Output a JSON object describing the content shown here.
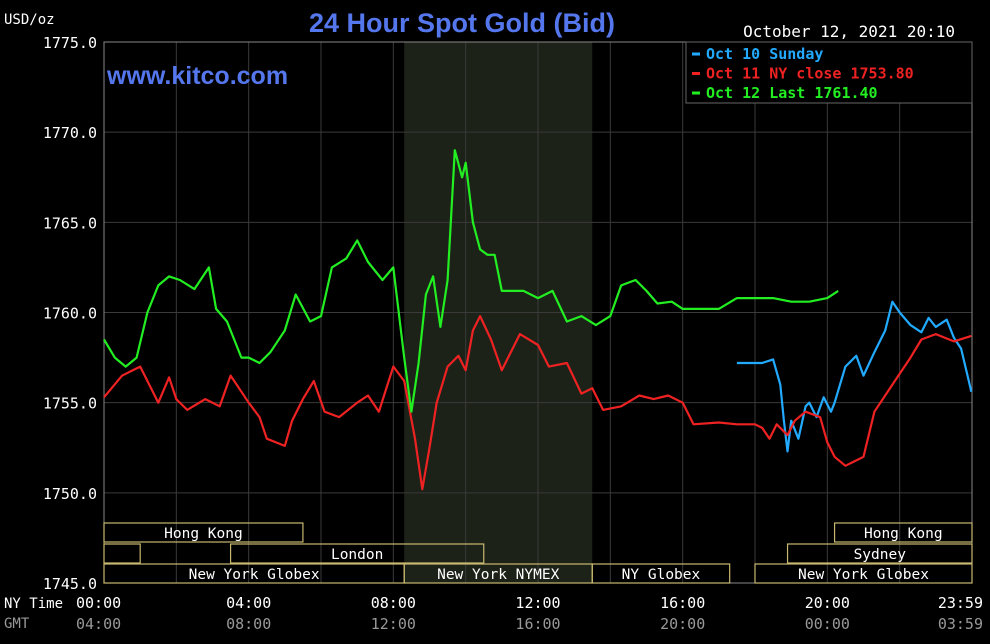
{
  "chart_data": {
    "type": "line",
    "title": "24 Hour Spot Gold (Bid)",
    "units_label": "USD/oz",
    "website": "www.kitco.com",
    "timestamp": "October 12, 2021 20:10",
    "ylim": [
      1745.0,
      1775.0
    ],
    "y_ticks": [
      "1775.0",
      "1770.0",
      "1765.0",
      "1760.0",
      "1755.0",
      "1750.0",
      "1745.0"
    ],
    "y_tick_values": [
      1775,
      1770,
      1765,
      1760,
      1755,
      1750,
      1745
    ],
    "xlim": [
      0,
      24
    ],
    "x_tick_values": [
      0,
      4,
      8,
      12,
      16,
      20,
      24
    ],
    "ny_time_label": "NY Time",
    "gmt_label": "GMT",
    "ny_ticks": [
      "00:00",
      "04:00",
      "08:00",
      "12:00",
      "16:00",
      "20:00",
      "23:59"
    ],
    "gmt_ticks": [
      "04:00",
      "08:00",
      "12:00",
      "16:00",
      "20:00",
      "00:00",
      "03:59"
    ],
    "grid": true,
    "shaded_session": [
      8.3,
      13.5
    ],
    "legend_position": "top-right",
    "series": [
      {
        "name": "Oct 10 Sunday",
        "color": "#22aaff",
        "x": [
          17.5,
          18.2,
          18.5,
          18.7,
          18.8,
          18.9,
          19.0,
          19.2,
          19.4,
          19.5,
          19.7,
          19.9,
          20.1,
          20.2,
          20.5,
          20.8,
          21.0,
          21.3,
          21.6,
          21.8,
          22.0,
          22.3,
          22.6,
          22.8,
          23.0,
          23.3,
          23.5,
          23.7,
          23.9,
          23.98
        ],
        "y": [
          1757.2,
          1757.2,
          1757.4,
          1756.0,
          1754.0,
          1752.3,
          1754.0,
          1753.0,
          1754.8,
          1755.0,
          1754.2,
          1755.3,
          1754.5,
          1755.0,
          1757.0,
          1757.6,
          1756.5,
          1757.8,
          1759.0,
          1760.6,
          1760.0,
          1759.3,
          1758.9,
          1759.7,
          1759.2,
          1759.6,
          1758.6,
          1758.0,
          1756.3,
          1755.6
        ]
      },
      {
        "name": "Oct 11 NY close 1753.80",
        "color": "#ee2222",
        "x": [
          0,
          0.5,
          1.0,
          1.5,
          1.8,
          2.0,
          2.3,
          2.8,
          3.2,
          3.5,
          4.0,
          4.3,
          4.5,
          5.0,
          5.2,
          5.5,
          5.8,
          6.1,
          6.5,
          7.0,
          7.3,
          7.6,
          8.0,
          8.3,
          8.6,
          8.8,
          9.0,
          9.2,
          9.5,
          9.8,
          10.0,
          10.2,
          10.4,
          10.7,
          11.0,
          11.5,
          12.0,
          12.3,
          12.8,
          13.2,
          13.5,
          13.8,
          14.3,
          14.8,
          15.2,
          15.6,
          16.0,
          16.3,
          17.0,
          17.5,
          18.0,
          18.2,
          18.4,
          18.6,
          18.9,
          19.1,
          19.4,
          19.8,
          20.0,
          20.2,
          20.5,
          20.8,
          21.0,
          21.3,
          21.8,
          22.3,
          22.6,
          23.0,
          23.5,
          23.98
        ],
        "y": [
          1755.3,
          1756.5,
          1757.0,
          1755.0,
          1756.4,
          1755.2,
          1754.6,
          1755.2,
          1754.8,
          1756.5,
          1755.0,
          1754.2,
          1753.0,
          1752.6,
          1754.0,
          1755.2,
          1756.2,
          1754.5,
          1754.2,
          1755.0,
          1755.4,
          1754.5,
          1757.0,
          1756.2,
          1753.0,
          1750.2,
          1752.5,
          1755.0,
          1757.0,
          1757.6,
          1756.8,
          1759.0,
          1759.8,
          1758.5,
          1756.8,
          1758.8,
          1758.2,
          1757.0,
          1757.2,
          1755.5,
          1755.8,
          1754.6,
          1754.8,
          1755.4,
          1755.2,
          1755.4,
          1755.0,
          1753.8,
          1753.9,
          1753.8,
          1753.8,
          1753.6,
          1753.0,
          1753.8,
          1753.2,
          1754.0,
          1754.5,
          1754.2,
          1752.8,
          1752.0,
          1751.5,
          1751.8,
          1752.0,
          1754.5,
          1756.0,
          1757.5,
          1758.5,
          1758.8,
          1758.4,
          1758.7
        ]
      },
      {
        "name": "Oct 12 Last 1761.40",
        "color": "#22ee22",
        "x": [
          0,
          0.3,
          0.6,
          0.9,
          1.2,
          1.5,
          1.8,
          2.1,
          2.5,
          2.9,
          3.1,
          3.4,
          3.8,
          4.0,
          4.3,
          4.6,
          5.0,
          5.3,
          5.7,
          6.0,
          6.3,
          6.7,
          7.0,
          7.3,
          7.7,
          8.0,
          8.3,
          8.5,
          8.7,
          8.9,
          9.1,
          9.3,
          9.5,
          9.7,
          9.9,
          10.0,
          10.2,
          10.4,
          10.6,
          10.8,
          11.0,
          11.3,
          11.6,
          12.0,
          12.4,
          12.8,
          13.2,
          13.6,
          14.0,
          14.3,
          14.7,
          15.0,
          15.3,
          15.7,
          16.0,
          16.3,
          16.6,
          17.0,
          17.5,
          18.0,
          18.5,
          19.0,
          19.5,
          20.0,
          20.3
        ],
        "y": [
          1758.5,
          1757.5,
          1757.0,
          1757.5,
          1760.0,
          1761.5,
          1762.0,
          1761.8,
          1761.3,
          1762.5,
          1760.2,
          1759.5,
          1757.5,
          1757.5,
          1757.2,
          1757.8,
          1759.0,
          1761.0,
          1759.5,
          1759.8,
          1762.5,
          1763.0,
          1764.0,
          1762.8,
          1761.8,
          1762.5,
          1757.5,
          1754.5,
          1757.2,
          1761.0,
          1762.0,
          1759.2,
          1761.8,
          1769.0,
          1767.5,
          1768.3,
          1765.0,
          1763.5,
          1763.2,
          1763.2,
          1761.2,
          1761.2,
          1761.2,
          1760.8,
          1761.2,
          1759.5,
          1759.8,
          1759.3,
          1759.8,
          1761.5,
          1761.8,
          1761.2,
          1760.5,
          1760.6,
          1760.2,
          1760.2,
          1760.2,
          1760.2,
          1760.8,
          1760.8,
          1760.8,
          1760.6,
          1760.6,
          1760.8,
          1761.2
        ]
      }
    ],
    "session_rows": [
      [
        {
          "label": "Hong Kong",
          "start": 0,
          "end": 5.5
        },
        {
          "label": "Hong Kong",
          "start": 20.2,
          "end": 24
        }
      ],
      [
        {
          "label": "",
          "start": 0,
          "end": 1
        },
        {
          "label": "London",
          "start": 3.5,
          "end": 10.5
        },
        {
          "label": "Sydney",
          "start": 18.9,
          "end": 24
        }
      ],
      [
        {
          "label": "New York Globex",
          "start": 0,
          "end": 8.3
        },
        {
          "label": "New York NYMEX",
          "start": 8.3,
          "end": 13.5
        },
        {
          "label": "NY Globex",
          "start": 13.5,
          "end": 17.3
        },
        {
          "label": "New York Globex",
          "start": 18.0,
          "end": 24
        }
      ]
    ]
  }
}
